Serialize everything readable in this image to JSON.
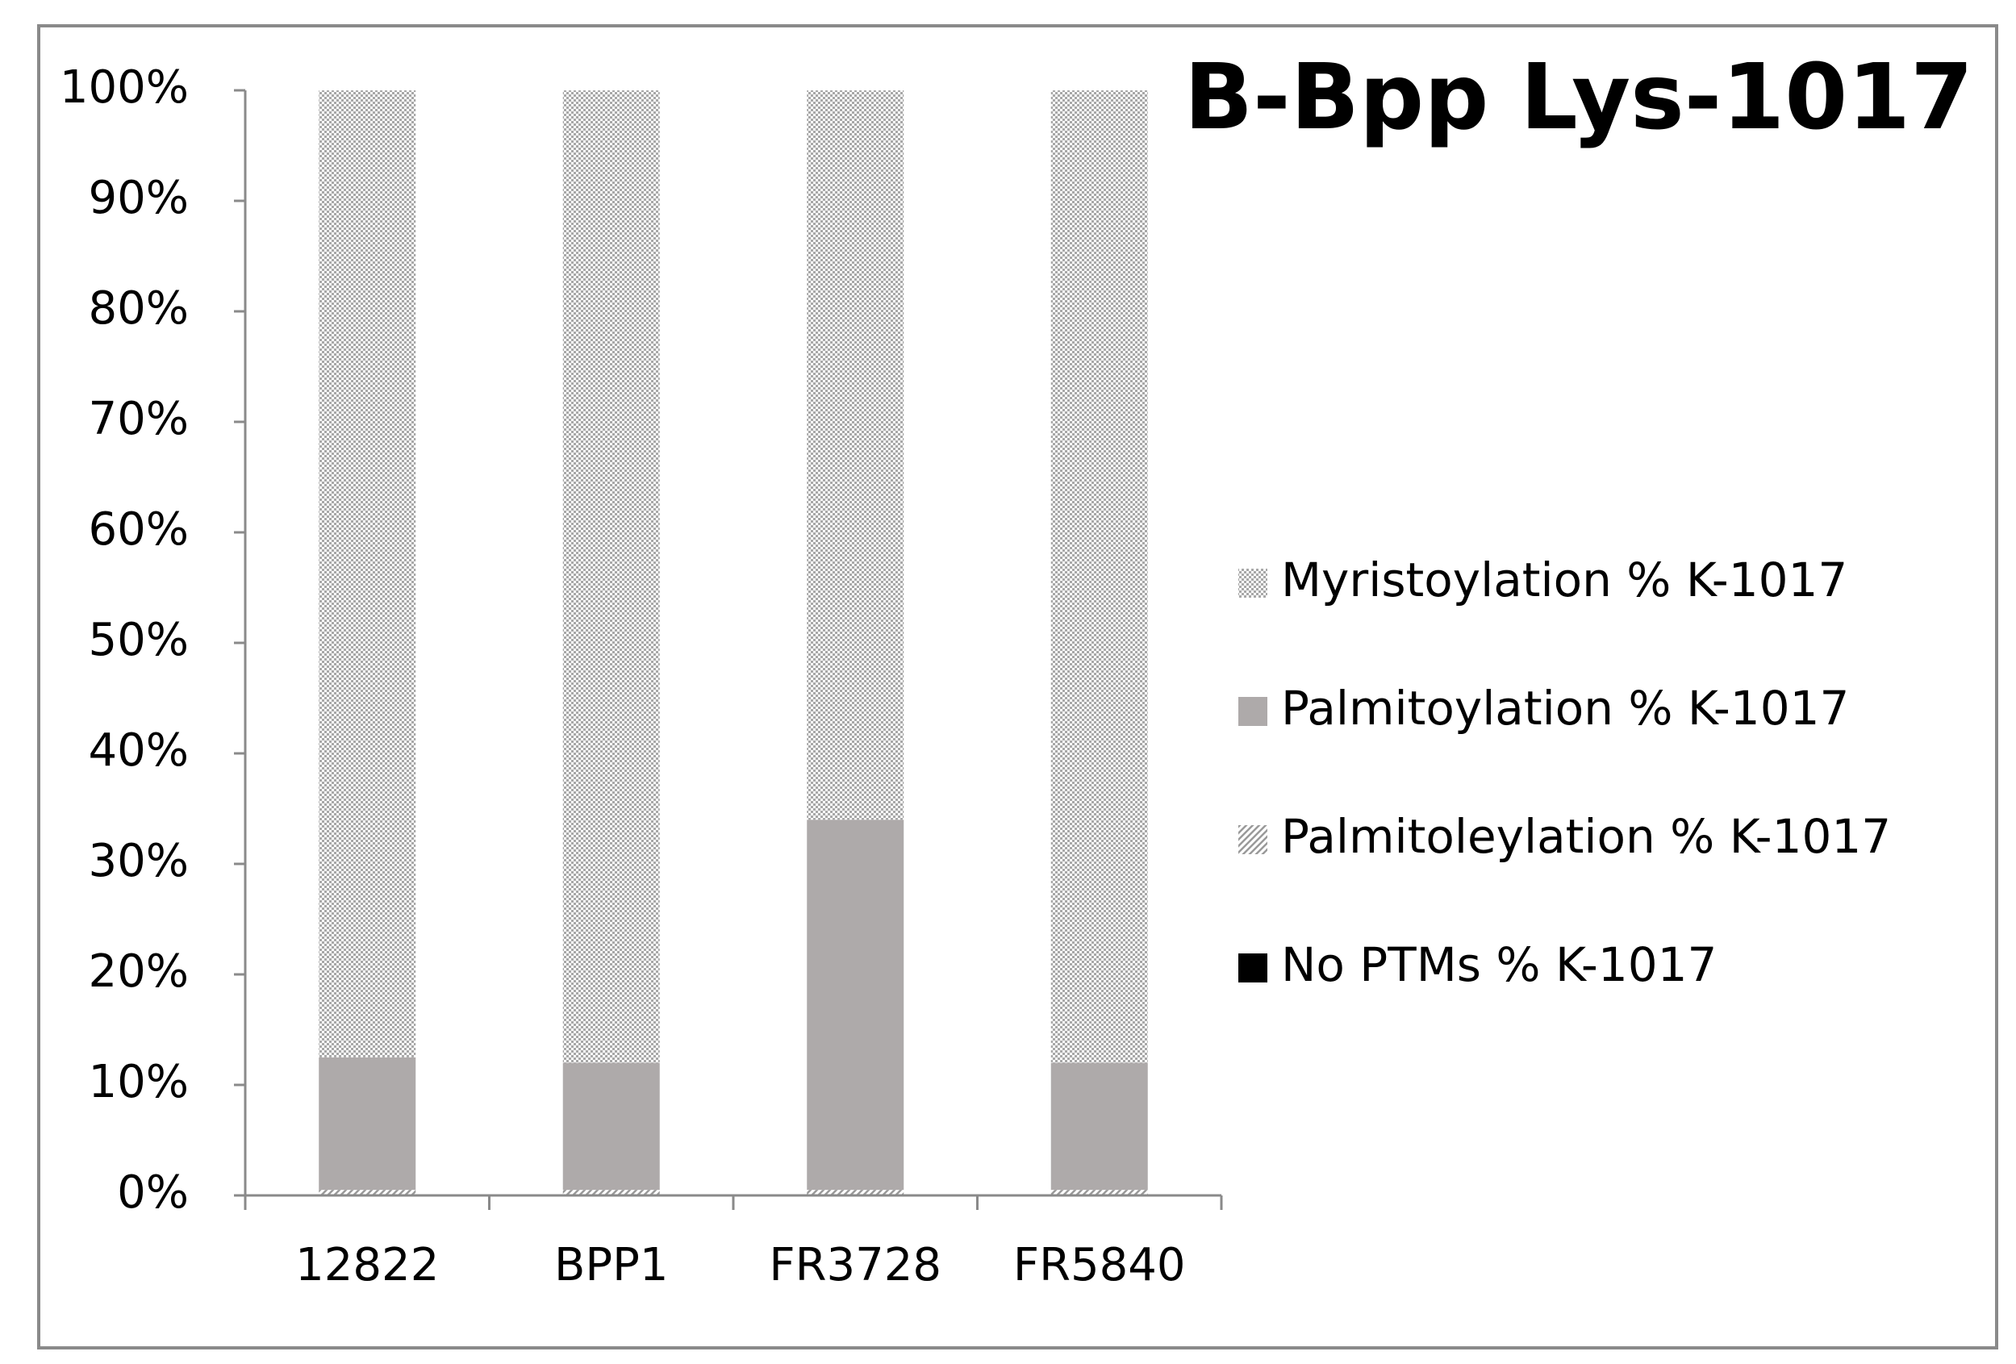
{
  "chart_data": {
    "type": "bar",
    "stacked": true,
    "title": "B-Bpp Lys-1017",
    "categories": [
      "12822",
      "BPP1",
      "FR3728",
      "FR5840"
    ],
    "series": [
      {
        "name": "No PTMs % K-1017",
        "color": "#000000",
        "values": [
          0,
          0,
          0,
          0
        ]
      },
      {
        "name": "Palmitoleylation % K-1017",
        "color": "#9a9a9a",
        "values": [
          0.5,
          0.5,
          0.5,
          0.5
        ]
      },
      {
        "name": "Palmitoylation % K-1017",
        "color": "#aeaaaa",
        "values": [
          12,
          11.5,
          33.5,
          11.5
        ]
      },
      {
        "name": "Myristoylation % K-1017",
        "color": "#a8a8a8",
        "values": [
          87.5,
          88,
          66,
          88
        ]
      }
    ],
    "ylim": [
      0,
      100
    ],
    "yticks": [
      {
        "value": 0,
        "label": "0%"
      },
      {
        "value": 10,
        "label": "10%"
      },
      {
        "value": 20,
        "label": "20%"
      },
      {
        "value": 30,
        "label": "30%"
      },
      {
        "value": 40,
        "label": "40%"
      },
      {
        "value": 50,
        "label": "50%"
      },
      {
        "value": 60,
        "label": "60%"
      },
      {
        "value": 70,
        "label": "70%"
      },
      {
        "value": 80,
        "label": "80%"
      },
      {
        "value": 90,
        "label": "90%"
      },
      {
        "value": 100,
        "label": "100%"
      }
    ],
    "grid": false,
    "legend": "right"
  }
}
